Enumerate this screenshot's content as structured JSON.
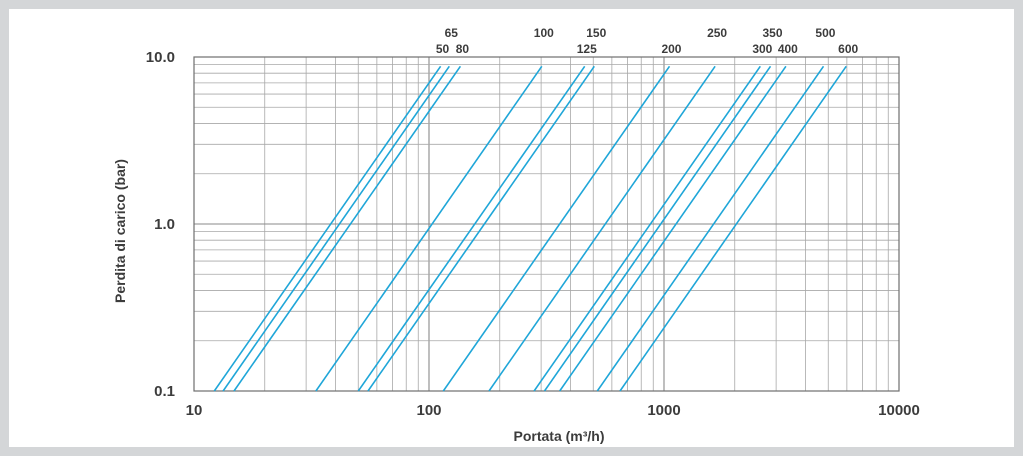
{
  "chart_data": {
    "type": "line",
    "xlabel": "Portata (m³/h)",
    "ylabel": "Perdita di carico (bar)",
    "x_scale": "log",
    "y_scale": "log",
    "xlim": [
      10,
      10000
    ],
    "ylim": [
      0.1,
      10
    ],
    "x_ticks": [
      "10",
      "100",
      "1000",
      "10000"
    ],
    "y_ticks": [
      "0.1",
      "1.0",
      "10.0"
    ],
    "grid": true,
    "line_color": "#1fa6d8",
    "series": [
      {
        "name": "50",
        "x": [
          12.2,
          112
        ],
        "y": [
          0.1,
          8.8
        ]
      },
      {
        "name": "65",
        "x": [
          13.3,
          122
        ],
        "y": [
          0.1,
          8.8
        ]
      },
      {
        "name": "80",
        "x": [
          14.8,
          136
        ],
        "y": [
          0.1,
          8.8
        ]
      },
      {
        "name": "100",
        "x": [
          33,
          302
        ],
        "y": [
          0.1,
          8.8
        ]
      },
      {
        "name": "125",
        "x": [
          50,
          460
        ],
        "y": [
          0.1,
          8.8
        ]
      },
      {
        "name": "150",
        "x": [
          55,
          505
        ],
        "y": [
          0.1,
          8.8
        ]
      },
      {
        "name": "200",
        "x": [
          115,
          1055
        ],
        "y": [
          0.1,
          8.8
        ]
      },
      {
        "name": "250",
        "x": [
          180,
          1650
        ],
        "y": [
          0.1,
          8.8
        ]
      },
      {
        "name": "300",
        "x": [
          280,
          2570
        ],
        "y": [
          0.1,
          8.8
        ]
      },
      {
        "name": "350",
        "x": [
          310,
          2840
        ],
        "y": [
          0.1,
          8.8
        ]
      },
      {
        "name": "400",
        "x": [
          360,
          3300
        ],
        "y": [
          0.1,
          8.8
        ]
      },
      {
        "name": "500",
        "x": [
          520,
          4770
        ],
        "y": [
          0.1,
          8.8
        ]
      },
      {
        "name": "600",
        "x": [
          650,
          5960
        ],
        "y": [
          0.1,
          8.8
        ]
      }
    ]
  }
}
